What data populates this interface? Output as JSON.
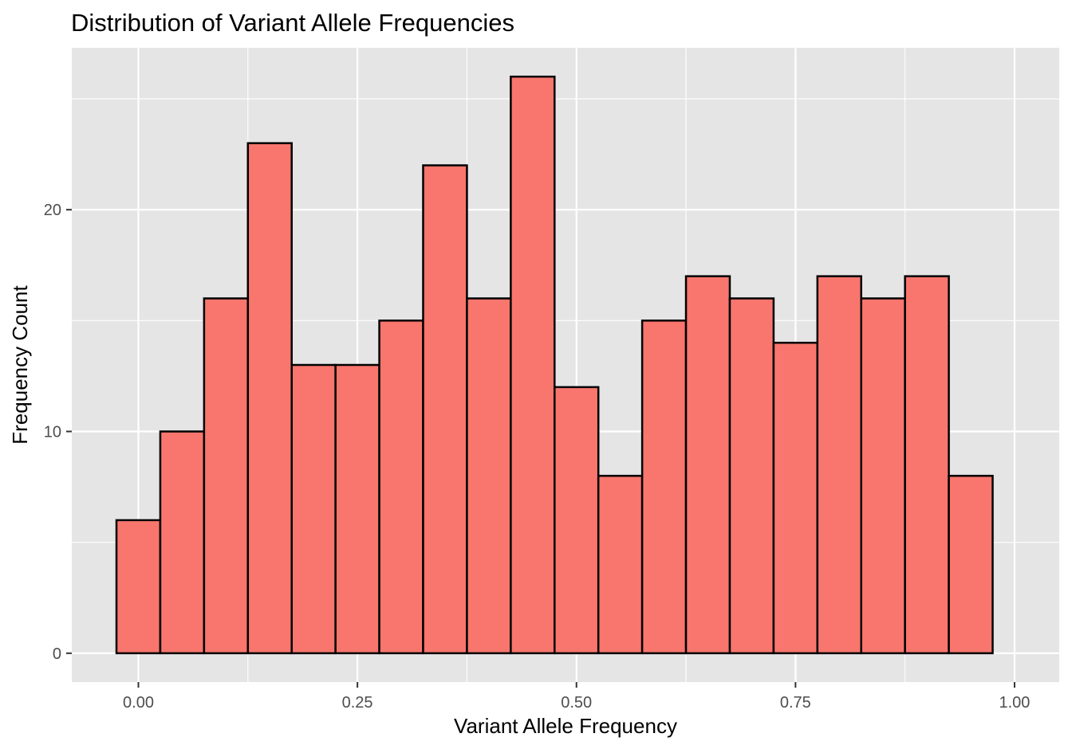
{
  "chart_data": {
    "type": "bar",
    "title": "Distribution of Variant Allele Frequencies",
    "xlabel": "Variant Allele Frequency",
    "ylabel": "Frequency Count",
    "bin_width": 0.05,
    "bins": [
      {
        "x_min": -0.025,
        "x_max": 0.025,
        "count": 6
      },
      {
        "x_min": 0.025,
        "x_max": 0.075,
        "count": 10
      },
      {
        "x_min": 0.075,
        "x_max": 0.125,
        "count": 16
      },
      {
        "x_min": 0.125,
        "x_max": 0.175,
        "count": 23
      },
      {
        "x_min": 0.175,
        "x_max": 0.225,
        "count": 13
      },
      {
        "x_min": 0.225,
        "x_max": 0.275,
        "count": 13
      },
      {
        "x_min": 0.275,
        "x_max": 0.325,
        "count": 15
      },
      {
        "x_min": 0.325,
        "x_max": 0.375,
        "count": 22
      },
      {
        "x_min": 0.375,
        "x_max": 0.425,
        "count": 16
      },
      {
        "x_min": 0.425,
        "x_max": 0.475,
        "count": 26
      },
      {
        "x_min": 0.475,
        "x_max": 0.525,
        "count": 12
      },
      {
        "x_min": 0.525,
        "x_max": 0.575,
        "count": 8
      },
      {
        "x_min": 0.575,
        "x_max": 0.625,
        "count": 15
      },
      {
        "x_min": 0.625,
        "x_max": 0.675,
        "count": 17
      },
      {
        "x_min": 0.675,
        "x_max": 0.725,
        "count": 16
      },
      {
        "x_min": 0.725,
        "x_max": 0.775,
        "count": 14
      },
      {
        "x_min": 0.775,
        "x_max": 0.825,
        "count": 17
      },
      {
        "x_min": 0.825,
        "x_max": 0.875,
        "count": 16
      },
      {
        "x_min": 0.875,
        "x_max": 0.925,
        "count": 17
      },
      {
        "x_min": 0.925,
        "x_max": 0.975,
        "count": 8
      }
    ],
    "xlim": [
      -0.076,
      1.051
    ],
    "ylim": [
      -1.3,
      27.3
    ],
    "x_ticks": [
      0,
      0.25,
      0.5,
      0.75,
      1
    ],
    "x_tick_labels": [
      "0.00",
      "0.25",
      "0.50",
      "0.75",
      "1.00"
    ],
    "y_ticks": [
      0,
      10,
      20
    ],
    "y_tick_labels": [
      "0",
      "10",
      "20"
    ],
    "grid": true,
    "bar_fill": "#F8766D",
    "bar_outline": "#000000",
    "panel_background": "#E5E5E5",
    "gridline_color": "#FFFFFF",
    "legend": "none"
  }
}
